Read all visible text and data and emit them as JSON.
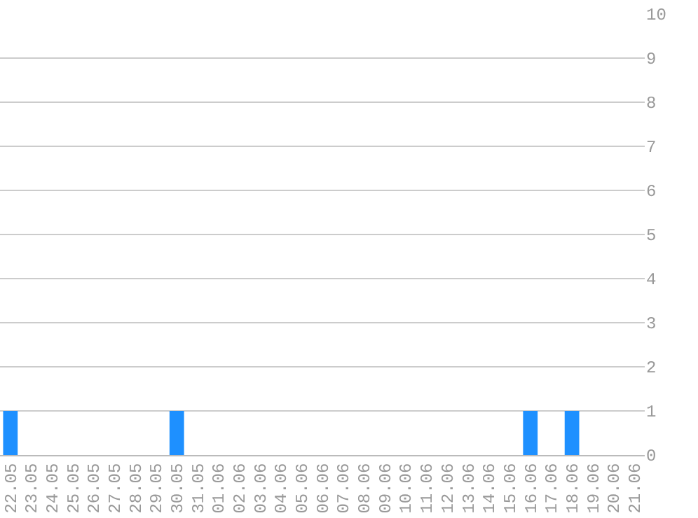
{
  "chart_data": {
    "type": "bar",
    "categories": [
      "22.05",
      "23.05",
      "24.05",
      "25.05",
      "26.05",
      "27.05",
      "28.05",
      "29.05",
      "30.05",
      "31.05",
      "01.06",
      "02.06",
      "03.06",
      "04.06",
      "05.06",
      "06.06",
      "07.06",
      "08.06",
      "09.06",
      "10.06",
      "11.06",
      "12.06",
      "13.06",
      "14.06",
      "15.06",
      "16.06",
      "17.06",
      "18.06",
      "19.06",
      "20.06",
      "21.06"
    ],
    "values": [
      1,
      0,
      0,
      0,
      0,
      0,
      0,
      0,
      1,
      0,
      0,
      0,
      0,
      0,
      0,
      0,
      0,
      0,
      0,
      0,
      0,
      0,
      0,
      0,
      0,
      1,
      0,
      1,
      0,
      0,
      0
    ],
    "color": "#1e90ff",
    "ylim": [
      0,
      10
    ],
    "yticks": [
      0,
      1,
      2,
      3,
      4,
      5,
      6,
      7,
      8,
      9,
      10
    ],
    "grid": "y"
  }
}
